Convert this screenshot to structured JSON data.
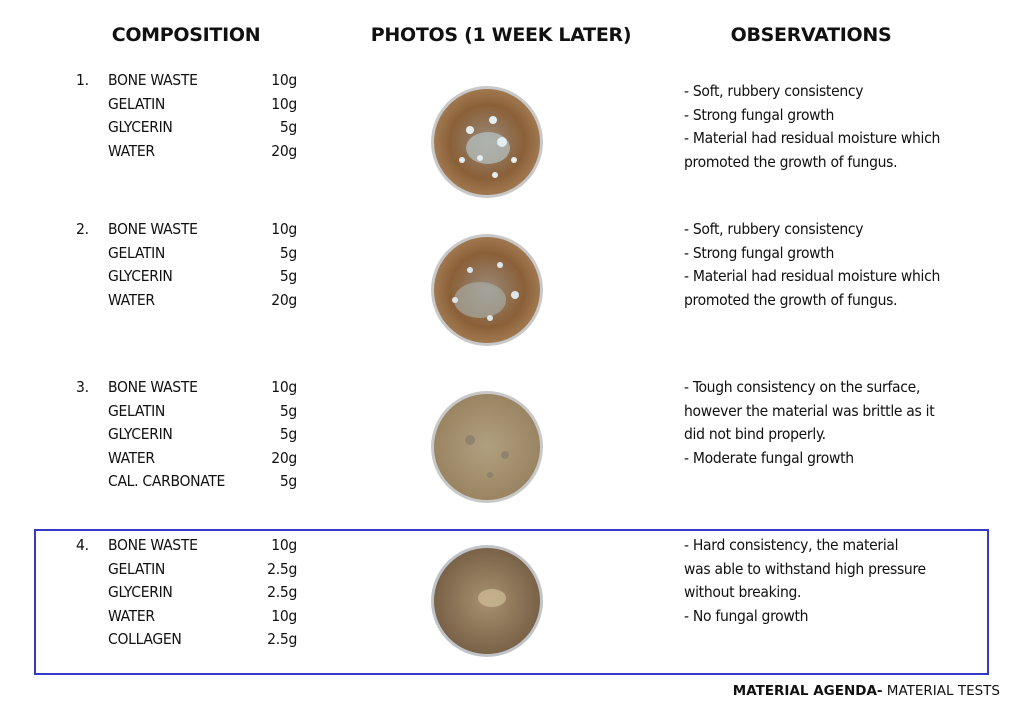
{
  "headers": {
    "composition": "COMPOSITION",
    "photos": "PHOTOS (1 WEEK LATER)",
    "observations": "OBSERVATIONS"
  },
  "rows": [
    {
      "number": "1.",
      "ingredients": [
        {
          "name": "BONE WASTE",
          "amount": "10g"
        },
        {
          "name": "GELATIN",
          "amount": "10g"
        },
        {
          "name": "GLYCERIN",
          "amount": "5g"
        },
        {
          "name": "WATER",
          "amount": "20g"
        }
      ],
      "observations": [
        "- Soft, rubbery consistency",
        "- Strong fungal growth",
        "- Material had residual moisture which",
        "promoted the growth of fungus."
      ]
    },
    {
      "number": "2.",
      "ingredients": [
        {
          "name": "BONE WASTE",
          "amount": "10g"
        },
        {
          "name": "GELATIN",
          "amount": "5g"
        },
        {
          "name": "GLYCERIN",
          "amount": "5g"
        },
        {
          "name": "WATER",
          "amount": "20g"
        }
      ],
      "observations": [
        "- Soft, rubbery consistency",
        "- Strong fungal growth",
        "- Material had residual moisture which",
        "promoted the growth of fungus."
      ]
    },
    {
      "number": "3.",
      "ingredients": [
        {
          "name": "BONE WASTE",
          "amount": "10g"
        },
        {
          "name": "GELATIN",
          "amount": "5g"
        },
        {
          "name": "GLYCERIN",
          "amount": "5g"
        },
        {
          "name": "WATER",
          "amount": "20g"
        },
        {
          "name": "CAL. CARBONATE",
          "amount": "5g"
        }
      ],
      "observations": [
        "- Tough consistency on the surface,",
        "however the material was brittle as it",
        "did not bind properly.",
        "- Moderate fungal growth"
      ]
    },
    {
      "number": "4.",
      "ingredients": [
        {
          "name": "BONE WASTE",
          "amount": "10g"
        },
        {
          "name": "GELATIN",
          "amount": "2.5g"
        },
        {
          "name": "GLYCERIN",
          "amount": "2.5g"
        },
        {
          "name": "WATER",
          "amount": "10g"
        },
        {
          "name": "COLLAGEN",
          "amount": "2.5g"
        }
      ],
      "observations": [
        "- Hard consistency, the material",
        "was able to withstand high pressure",
        "without breaking.",
        "- No fungal growth"
      ]
    }
  ],
  "footer": {
    "bold": "MATERIAL AGENDA-",
    "text": " MATERIAL TESTS"
  }
}
